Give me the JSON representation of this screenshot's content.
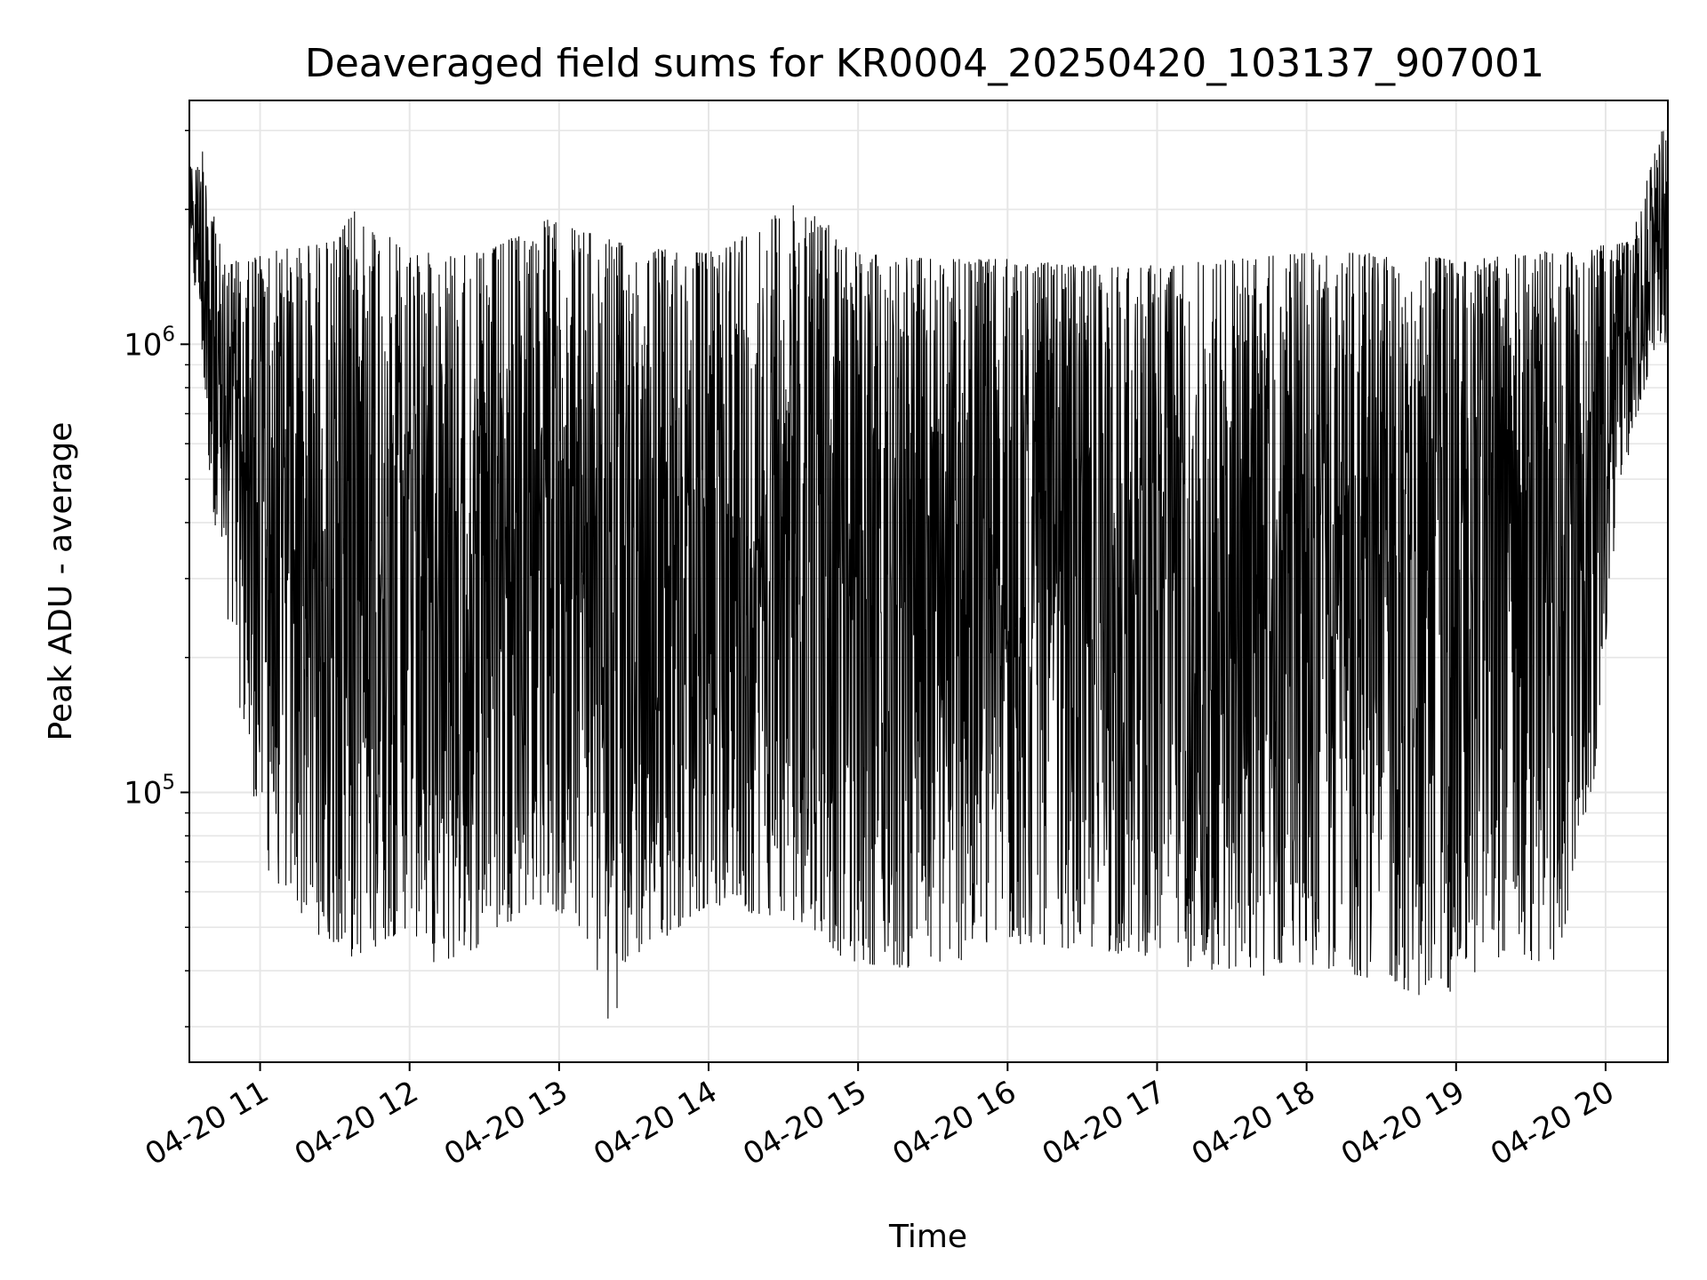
{
  "chart_data": {
    "type": "line",
    "title": "Deaveraged field sums for KR0004_20250420_103137_907001",
    "xlabel": "Time",
    "ylabel": "Peak ADU - average",
    "x_range": [
      "04-20 10:31:37",
      "04-20 20:25"
    ],
    "y_scale": "log",
    "ylim": [
      25000,
      3500000
    ],
    "grid": true,
    "line_color": "#000000",
    "x_ticks": [
      {
        "label": "04-20 11",
        "time": "04-20 11:00"
      },
      {
        "label": "04-20 12",
        "time": "04-20 12:00"
      },
      {
        "label": "04-20 13",
        "time": "04-20 13:00"
      },
      {
        "label": "04-20 14",
        "time": "04-20 14:00"
      },
      {
        "label": "04-20 15",
        "time": "04-20 15:00"
      },
      {
        "label": "04-20 16",
        "time": "04-20 16:00"
      },
      {
        "label": "04-20 17",
        "time": "04-20 17:00"
      },
      {
        "label": "04-20 18",
        "time": "04-20 18:00"
      },
      {
        "label": "04-20 19",
        "time": "04-20 19:00"
      },
      {
        "label": "04-20 20",
        "time": "04-20 20:00"
      }
    ],
    "y_ticks": [
      {
        "base": "10",
        "exp": "5",
        "value": 100000
      },
      {
        "base": "10",
        "exp": "6",
        "value": 1000000
      }
    ],
    "series": [
      {
        "values_min_envelope": [
          {
            "time": "04-20 10:35",
            "value": 1300000
          },
          {
            "time": "04-20 10:40",
            "value": 480000
          },
          {
            "time": "04-20 10:50",
            "value": 180000
          },
          {
            "time": "04-20 11:02",
            "value": 68000
          },
          {
            "time": "04-20 11:20",
            "value": 50000
          },
          {
            "time": "04-20 11:36",
            "value": 42000
          },
          {
            "time": "04-20 12:00",
            "value": 50000
          },
          {
            "time": "04-20 12:12",
            "value": 40000
          },
          {
            "time": "04-20 12:30",
            "value": 46000
          },
          {
            "time": "04-20 12:50",
            "value": 57000
          },
          {
            "time": "04-20 13:10",
            "value": 49000
          },
          {
            "time": "04-20 13:22",
            "value": 28000
          },
          {
            "time": "04-20 13:27",
            "value": 41000
          },
          {
            "time": "04-20 14:00",
            "value": 56000
          },
          {
            "time": "04-20 14:40",
            "value": 51000
          },
          {
            "time": "04-20 14:55",
            "value": 42000
          },
          {
            "time": "04-20 15:25",
            "value": 40000
          },
          {
            "time": "04-20 16:10",
            "value": 46000
          },
          {
            "time": "04-20 16:35",
            "value": 44000
          },
          {
            "time": "04-20 17:00",
            "value": 43000
          },
          {
            "time": "04-20 17:35",
            "value": 37000
          },
          {
            "time": "04-20 17:55",
            "value": 42000
          },
          {
            "time": "04-20 18:30",
            "value": 38000
          },
          {
            "time": "04-20 18:52",
            "value": 34000
          },
          {
            "time": "04-20 19:20",
            "value": 44000
          },
          {
            "time": "04-20 19:40",
            "value": 40000
          },
          {
            "time": "04-20 19:55",
            "value": 100000
          },
          {
            "time": "04-20 20:05",
            "value": 450000
          },
          {
            "time": "04-20 20:20",
            "value": 1000000
          }
        ],
        "values_max_envelope": [
          {
            "time": "04-20 10:35",
            "value": 2500000
          },
          {
            "time": "04-20 10:38",
            "value": 2900000
          },
          {
            "time": "04-20 10:45",
            "value": 1500000
          },
          {
            "time": "04-20 11:00",
            "value": 1600000
          },
          {
            "time": "04-20 11:30",
            "value": 1700000
          },
          {
            "time": "04-20 11:38",
            "value": 2000000
          },
          {
            "time": "04-20 12:00",
            "value": 1600000
          },
          {
            "time": "04-20 12:30",
            "value": 1600000
          },
          {
            "time": "04-20 12:55",
            "value": 1900000
          },
          {
            "time": "04-20 13:30",
            "value": 1650000
          },
          {
            "time": "04-20 14:00",
            "value": 1600000
          },
          {
            "time": "04-20 14:20",
            "value": 1850000
          },
          {
            "time": "04-20 14:38",
            "value": 2100000
          },
          {
            "time": "04-20 15:00",
            "value": 1600000
          },
          {
            "time": "04-20 15:30",
            "value": 1550000
          },
          {
            "time": "04-20 16:00",
            "value": 1550000
          },
          {
            "time": "04-20 16:30",
            "value": 1500000
          },
          {
            "time": "04-20 17:00",
            "value": 1500000
          },
          {
            "time": "04-20 17:30",
            "value": 1550000
          },
          {
            "time": "04-20 18:00",
            "value": 1600000
          },
          {
            "time": "04-20 18:30",
            "value": 1600000
          },
          {
            "time": "04-20 19:00",
            "value": 1550000
          },
          {
            "time": "04-20 19:30",
            "value": 1600000
          },
          {
            "time": "04-20 19:55",
            "value": 1650000
          },
          {
            "time": "04-20 20:10",
            "value": 1700000
          },
          {
            "time": "04-20 20:22",
            "value": 3000000
          }
        ]
      }
    ]
  }
}
